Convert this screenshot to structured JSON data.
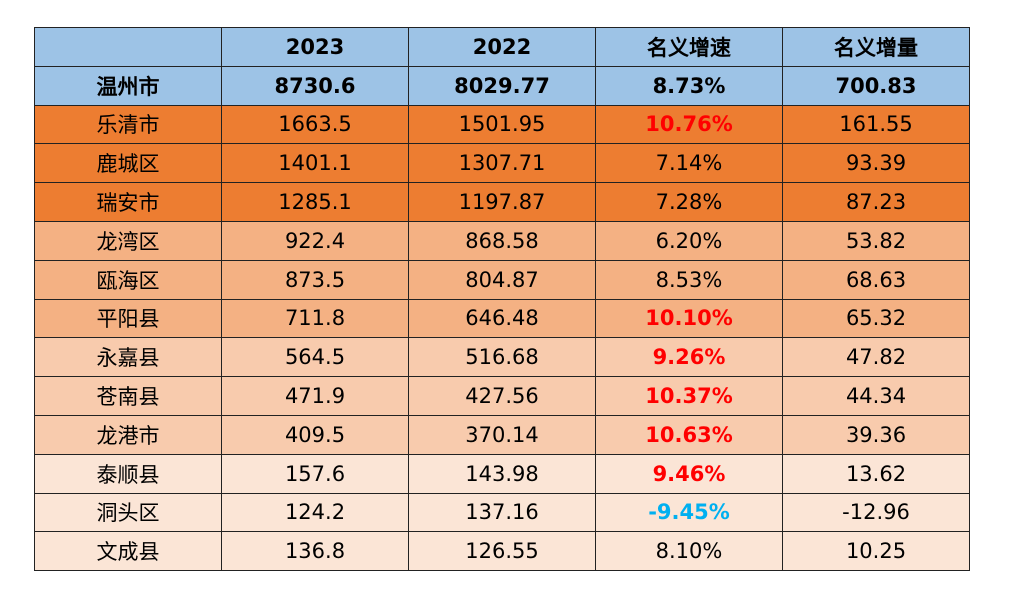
{
  "table": {
    "header": {
      "columns": [
        "2023",
        "2022",
        "名义增速",
        "名义增量"
      ],
      "fill": "#9dc3e6"
    },
    "total": {
      "cells": [
        "温州市",
        "8730.6",
        "8029.77",
        "8.73%",
        "700.83"
      ],
      "fill": "#9dc3e6"
    },
    "rows": [
      {
        "cells": [
          "乐清市",
          "1663.5",
          "1501.95",
          "10.76%",
          "161.55"
        ],
        "fill": "#ed7d31",
        "growth_color": "#ff0000"
      },
      {
        "cells": [
          "鹿城区",
          "1401.1",
          "1307.71",
          "7.14%",
          "93.39"
        ],
        "fill": "#ed7d31"
      },
      {
        "cells": [
          "瑞安市",
          "1285.1",
          "1197.87",
          "7.28%",
          "87.23"
        ],
        "fill": "#ed7d31"
      },
      {
        "cells": [
          "龙湾区",
          "922.4",
          "868.58",
          "6.20%",
          "53.82"
        ],
        "fill": "#f4b183"
      },
      {
        "cells": [
          "瓯海区",
          "873.5",
          "804.87",
          "8.53%",
          "68.63"
        ],
        "fill": "#f4b183"
      },
      {
        "cells": [
          "平阳县",
          "711.8",
          "646.48",
          "10.10%",
          "65.32"
        ],
        "fill": "#f4b183",
        "growth_color": "#ff0000"
      },
      {
        "cells": [
          "永嘉县",
          "564.5",
          "516.68",
          "9.26%",
          "47.82"
        ],
        "fill": "#f8cbad",
        "growth_color": "#ff0000"
      },
      {
        "cells": [
          "苍南县",
          "471.9",
          "427.56",
          "10.37%",
          "44.34"
        ],
        "fill": "#f8cbad",
        "growth_color": "#ff0000"
      },
      {
        "cells": [
          "龙港市",
          "409.5",
          "370.14",
          "10.63%",
          "39.36"
        ],
        "fill": "#f8cbad",
        "growth_color": "#ff0000"
      },
      {
        "cells": [
          "泰顺县",
          "157.6",
          "143.98",
          "9.46%",
          "13.62"
        ],
        "fill": "#fbe5d6",
        "growth_color": "#ff0000"
      },
      {
        "cells": [
          "洞头区",
          "124.2",
          "137.16",
          "-9.45%",
          "-12.96"
        ],
        "fill": "#fbe5d6",
        "growth_color": "#00b0f0"
      },
      {
        "cells": [
          "文成县",
          "136.8",
          "126.55",
          "8.10%",
          "10.25"
        ],
        "fill": "#fbe5d6"
      }
    ]
  }
}
